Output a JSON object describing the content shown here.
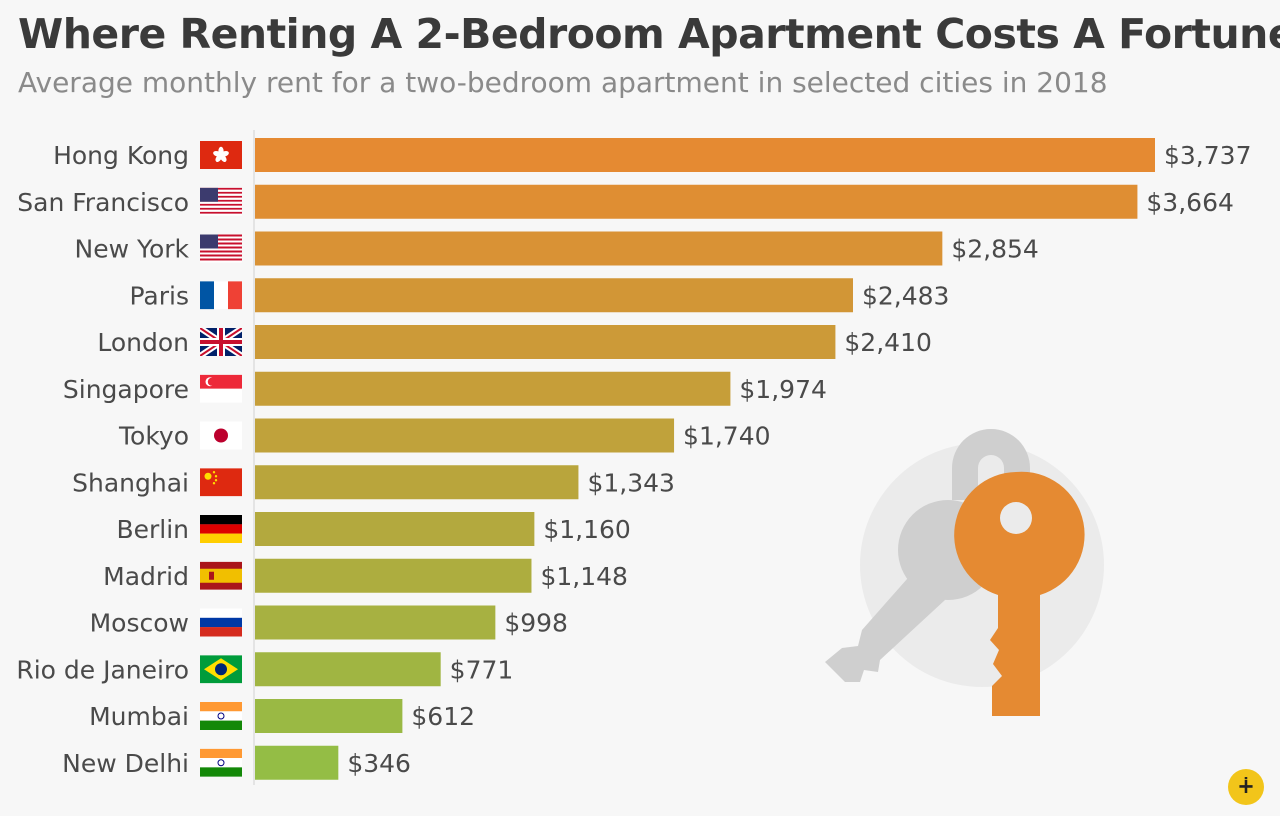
{
  "title": "Where Renting A 2-Bedroom Apartment Costs A Fortune",
  "subtitle": "Average monthly rent for a two-bedroom apartment in selected cities in 2018",
  "logo_glyph": "∔",
  "chart_data": {
    "type": "bar",
    "orientation": "horizontal",
    "categories": [
      "Hong Kong",
      "San Francisco",
      "New York",
      "Paris",
      "London",
      "Singapore",
      "Tokyo",
      "Shanghai",
      "Berlin",
      "Madrid",
      "Moscow",
      "Rio de Janeiro",
      "Mumbai",
      "New Delhi"
    ],
    "values": [
      3737,
      3664,
      2854,
      2483,
      2410,
      1974,
      1740,
      1343,
      1160,
      1148,
      998,
      771,
      612,
      346
    ],
    "value_labels": [
      "$3,737",
      "$3,664",
      "$2,854",
      "$2,483",
      "$2,410",
      "$1,974",
      "$1,740",
      "$1,343",
      "$1,160",
      "$1,148",
      "$998",
      "$771",
      "$612",
      "$346"
    ],
    "flags": [
      "hk",
      "us",
      "us",
      "fr",
      "gb",
      "sg",
      "jp",
      "cn",
      "de",
      "es",
      "ru",
      "br",
      "in",
      "in"
    ],
    "colors": {
      "bar_high": "#e58a32",
      "bar_low": "#94bd45",
      "key": "#e58a32",
      "lock": "#cfcfcf",
      "circle": "#ebebeb"
    }
  }
}
